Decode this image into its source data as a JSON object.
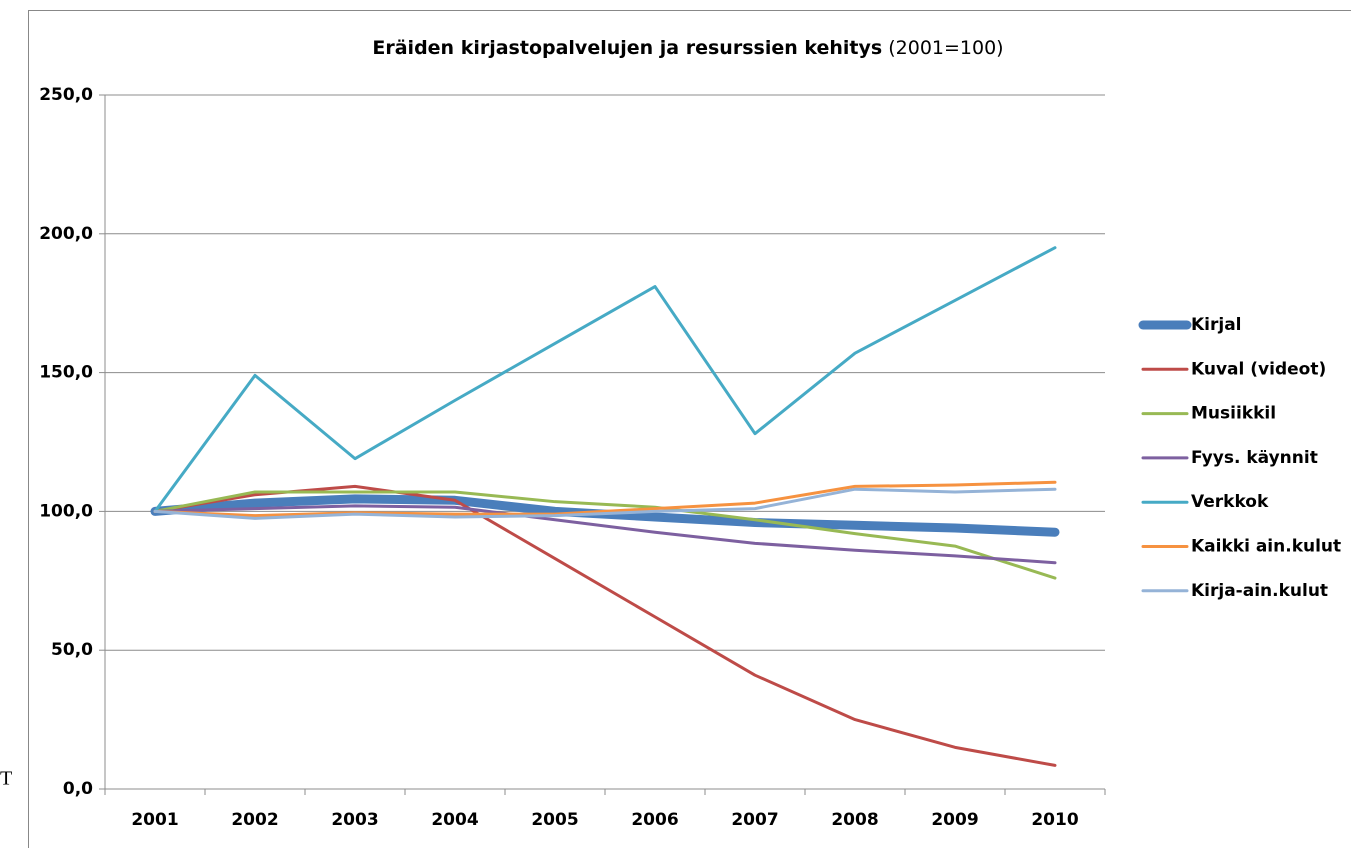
{
  "chart_data": {
    "type": "line",
    "title": "Eräiden kirjastopalvelujen ja resurssien kehitys",
    "title_note": "(2001=100)",
    "fragment": "T",
    "categories": [
      "2001",
      "2002",
      "2003",
      "2004",
      "2005",
      "2006",
      "2007",
      "2008",
      "2009",
      "2010"
    ],
    "ylim": [
      0,
      250
    ],
    "yticks": [
      {
        "value": 0,
        "label": "0,0"
      },
      {
        "value": 50,
        "label": "50,0"
      },
      {
        "value": 100,
        "label": "100,0"
      },
      {
        "value": 150,
        "label": "150,0"
      },
      {
        "value": 200,
        "label": "200,0"
      },
      {
        "value": 250,
        "label": "250,0"
      }
    ],
    "grid": true,
    "legend": "right",
    "series": [
      {
        "name": "Kirjal",
        "color": "#4a7ebb",
        "line_width": 9,
        "values": [
          100,
          103,
          104.5,
          104,
          100,
          98,
          96,
          95,
          94,
          92.5
        ]
      },
      {
        "name": "Kuval (videot)",
        "color": "#be4b48",
        "line_width": 3,
        "values": [
          100,
          106,
          109,
          104,
          83,
          62,
          41,
          25,
          15,
          8.5
        ]
      },
      {
        "name": "Musiikkil",
        "color": "#98b954",
        "line_width": 3,
        "values": [
          100,
          107,
          107,
          107,
          103.5,
          101.5,
          97,
          92,
          87.5,
          76
        ]
      },
      {
        "name": "Fyys. käynnit",
        "color": "#7d60a0",
        "line_width": 3,
        "values": [
          100,
          101,
          102,
          101.5,
          97,
          92.5,
          88.5,
          86,
          84,
          81.5
        ]
      },
      {
        "name": "Verkkok",
        "color": "#46aac5",
        "line_width": 3,
        "values": [
          100,
          149,
          119,
          140,
          160.5,
          181,
          128,
          157,
          176,
          195
        ]
      },
      {
        "name": "Kaikki ain.kulut",
        "color": "#f69240",
        "line_width": 3,
        "values": [
          100,
          98.5,
          99.5,
          99,
          99,
          101,
          103,
          109,
          109.5,
          110.5
        ]
      },
      {
        "name": "Kirja-ain.kulut",
        "color": "#95b3d7",
        "line_width": 3,
        "values": [
          100,
          97.5,
          99,
          98,
          98.5,
          100,
          101,
          108,
          107,
          108
        ]
      }
    ]
  }
}
